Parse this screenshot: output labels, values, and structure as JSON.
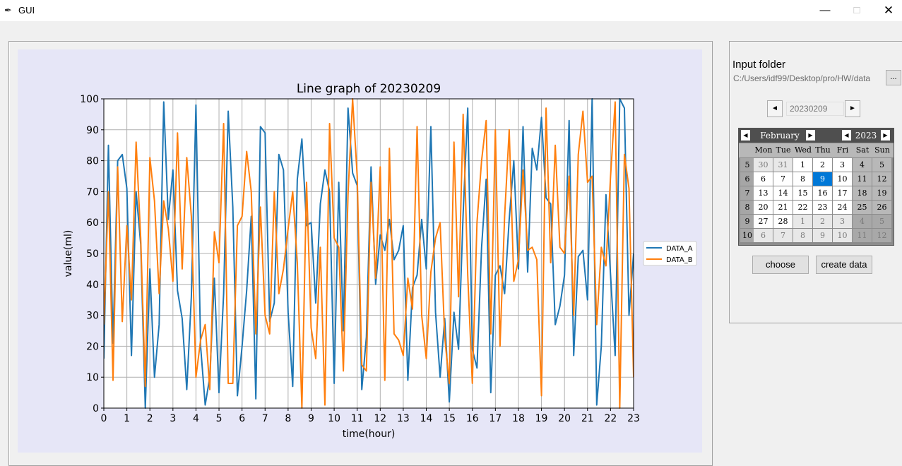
{
  "window": {
    "title": "GUI",
    "minimize": "—",
    "maximize": "□",
    "close": "✕"
  },
  "right_panel": {
    "input_label": "Input folder",
    "path_value": "C:/Users/idf99/Desktop/pro/HW/data",
    "browse_label": "...",
    "spin_prev": "◄",
    "spin_next": "►",
    "date_value": "20230209",
    "choose_label": "choose",
    "create_label": "create data"
  },
  "calendar": {
    "month": "February",
    "year": "2023",
    "weekdays": [
      "Mon",
      "Tue",
      "Wed",
      "Thu",
      "Fri",
      "Sat",
      "Sun"
    ],
    "weeks": [
      5,
      6,
      7,
      8,
      9,
      10
    ],
    "rows": [
      [
        "30",
        "31",
        "1",
        "2",
        "3",
        "4",
        "5"
      ],
      [
        "6",
        "7",
        "8",
        "9",
        "10",
        "11",
        "12"
      ],
      [
        "13",
        "14",
        "15",
        "16",
        "17",
        "18",
        "19"
      ],
      [
        "20",
        "21",
        "22",
        "23",
        "24",
        "25",
        "26"
      ],
      [
        "27",
        "28",
        "1",
        "2",
        "3",
        "4",
        "5"
      ],
      [
        "6",
        "7",
        "8",
        "9",
        "10",
        "11",
        "12"
      ]
    ],
    "selected_day": "9",
    "colors": {
      "selected": "#0078d7",
      "weekend": "#b8b8b8",
      "other_month": "#e8e8e8",
      "weekday": "#ffffff"
    }
  },
  "chart_data": {
    "type": "line",
    "title": "Line graph of 20230209",
    "xlabel": "time(hour)",
    "ylabel": "value(ml)",
    "xlim": [
      0,
      23
    ],
    "ylim": [
      0,
      100
    ],
    "xticks": [
      0,
      1,
      2,
      3,
      4,
      5,
      6,
      7,
      8,
      9,
      10,
      11,
      12,
      13,
      14,
      15,
      16,
      17,
      18,
      19,
      20,
      21,
      22,
      23
    ],
    "yticks": [
      0,
      10,
      20,
      30,
      40,
      50,
      60,
      70,
      80,
      90,
      100
    ],
    "grid": true,
    "legend_position": "right",
    "series": [
      {
        "name": "DATA_A",
        "color": "#1f77b4",
        "values": [
          16,
          85,
          21,
          80,
          82,
          71,
          17,
          70,
          53,
          0,
          45,
          10,
          27,
          99,
          61,
          77,
          38,
          29,
          6,
          36,
          98,
          20,
          1,
          10,
          42,
          5,
          37,
          96,
          65,
          4,
          20,
          38,
          62,
          3,
          91,
          89,
          28,
          34,
          82,
          77,
          31,
          7,
          74,
          87,
          59,
          60,
          34,
          66,
          77,
          70,
          8,
          73,
          25,
          97,
          76,
          72,
          6,
          23,
          78,
          40,
          56,
          51,
          61,
          48,
          51,
          59,
          9,
          39,
          43,
          61,
          45,
          91,
          31,
          10,
          29,
          2,
          31,
          19,
          63,
          97,
          19,
          13,
          52,
          74,
          5,
          43,
          46,
          37,
          61,
          80,
          45,
          91,
          44,
          84,
          77,
          94,
          68,
          66,
          27,
          33,
          43,
          93,
          17,
          49,
          51,
          35,
          100,
          1,
          20,
          69,
          43,
          17,
          100,
          97,
          30,
          50
        ]
      },
      {
        "name": "DATA_B",
        "color": "#ff7f0e",
        "values": [
          27,
          70,
          9,
          78,
          28,
          59,
          35,
          86,
          55,
          7,
          81,
          67,
          37,
          67,
          58,
          41,
          89,
          45,
          81,
          62,
          10,
          22,
          27,
          6,
          57,
          47,
          92,
          8,
          8,
          59,
          62,
          83,
          70,
          24,
          65,
          30,
          24,
          70,
          37,
          45,
          58,
          70,
          47,
          0,
          73,
          26,
          16,
          52,
          1,
          92,
          55,
          52,
          12,
          69,
          100,
          75,
          14,
          12,
          73,
          42,
          78,
          9,
          84,
          24,
          22,
          17,
          42,
          32,
          91,
          30,
          16,
          44,
          55,
          60,
          23,
          8,
          86,
          36,
          95,
          43,
          8,
          60,
          80,
          93,
          24,
          90,
          20,
          62,
          90,
          41,
          48,
          77,
          51,
          52,
          48,
          4,
          97,
          47,
          85,
          52,
          50,
          75,
          30,
          82,
          96,
          73,
          75,
          27,
          52,
          46,
          75,
          99,
          0,
          82,
          71,
          10
        ]
      }
    ]
  }
}
